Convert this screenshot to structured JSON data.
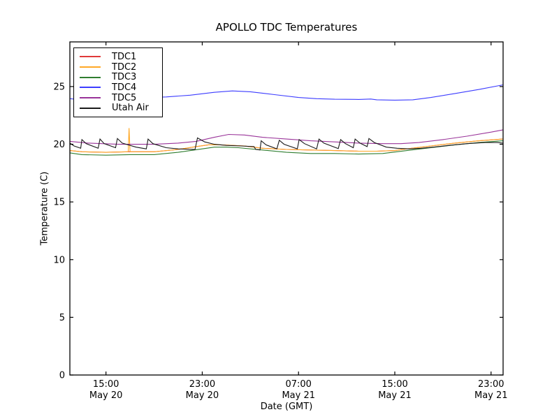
{
  "figure": {
    "background": "#ffffff"
  },
  "chart_data": {
    "type": "line",
    "title": "APOLLO TDC Temperatures",
    "xlabel": "Date (GMT)",
    "ylabel": "Temperature (C)",
    "xlim_hours": [
      0,
      36
    ],
    "ylim": [
      0,
      28.87
    ],
    "grid": false,
    "legend_position": "upper left",
    "yticks": [
      {
        "v": 0,
        "label": "0"
      },
      {
        "v": 5,
        "label": "5"
      },
      {
        "v": 10,
        "label": "10"
      },
      {
        "v": 15,
        "label": "15"
      },
      {
        "v": 20,
        "label": "20"
      },
      {
        "v": 25,
        "label": "25"
      }
    ],
    "xticks": [
      {
        "h": 3,
        "time": "15:00",
        "date": "May 20"
      },
      {
        "h": 11,
        "time": "23:00",
        "date": "May 20"
      },
      {
        "h": 19,
        "time": "07:00",
        "date": "May 21"
      },
      {
        "h": 27,
        "time": "15:00",
        "date": "May 21"
      },
      {
        "h": 35,
        "time": "23:00",
        "date": "May 21"
      }
    ],
    "series": [
      {
        "name": "TDC1",
        "color": "#e03a3a",
        "points": [
          [
            0,
            19.45
          ],
          [
            1,
            19.35
          ],
          [
            3,
            19.3
          ],
          [
            4.9,
            19.35
          ],
          [
            6,
            19.35
          ],
          [
            7,
            19.35
          ],
          [
            9,
            19.55
          ],
          [
            10.5,
            19.8
          ],
          [
            11.5,
            19.95
          ],
          [
            12.5,
            19.95
          ],
          [
            13.5,
            19.9
          ],
          [
            14.5,
            19.85
          ],
          [
            16,
            19.65
          ],
          [
            18,
            19.55
          ],
          [
            20,
            19.5
          ],
          [
            22,
            19.45
          ],
          [
            24,
            19.4
          ],
          [
            25.5,
            19.4
          ],
          [
            27,
            19.45
          ],
          [
            28,
            19.6
          ],
          [
            30,
            19.85
          ],
          [
            32,
            20.1
          ],
          [
            34,
            20.3
          ],
          [
            36,
            20.45
          ]
        ]
      },
      {
        "name": "TDC2",
        "color": "#ffa826",
        "points": [
          [
            0,
            19.45
          ],
          [
            1,
            19.35
          ],
          [
            3,
            19.3
          ],
          [
            4.85,
            19.35
          ],
          [
            4.92,
            21.4
          ],
          [
            5.0,
            19.35
          ],
          [
            6,
            19.35
          ],
          [
            7,
            19.35
          ],
          [
            9,
            19.55
          ],
          [
            10.5,
            19.8
          ],
          [
            11.5,
            19.95
          ],
          [
            12.5,
            19.95
          ],
          [
            13.5,
            19.9
          ],
          [
            14.5,
            19.85
          ],
          [
            16,
            19.65
          ],
          [
            18,
            19.55
          ],
          [
            20,
            19.5
          ],
          [
            22,
            19.45
          ],
          [
            24,
            19.4
          ],
          [
            25.5,
            19.4
          ],
          [
            27,
            19.45
          ],
          [
            28,
            19.6
          ],
          [
            30,
            19.85
          ],
          [
            32,
            20.1
          ],
          [
            34,
            20.3
          ],
          [
            36,
            20.45
          ]
        ]
      },
      {
        "name": "TDC3",
        "color": "#2f7d2f",
        "points": [
          [
            0,
            19.25
          ],
          [
            1,
            19.1
          ],
          [
            3,
            19.05
          ],
          [
            5,
            19.1
          ],
          [
            7,
            19.1
          ],
          [
            9,
            19.3
          ],
          [
            11,
            19.6
          ],
          [
            12,
            19.75
          ],
          [
            13,
            19.75
          ],
          [
            14,
            19.7
          ],
          [
            16,
            19.5
          ],
          [
            18,
            19.3
          ],
          [
            20,
            19.2
          ],
          [
            22,
            19.2
          ],
          [
            24,
            19.15
          ],
          [
            26,
            19.2
          ],
          [
            28,
            19.45
          ],
          [
            30,
            19.7
          ],
          [
            32,
            19.95
          ],
          [
            34,
            20.15
          ],
          [
            36,
            20.3
          ]
        ]
      },
      {
        "name": "TDC4",
        "color": "#3c3cff",
        "points": [
          [
            0,
            23.95
          ],
          [
            1,
            23.85
          ],
          [
            2.5,
            23.9
          ],
          [
            5,
            24.0
          ],
          [
            8,
            24.1
          ],
          [
            10,
            24.25
          ],
          [
            12,
            24.5
          ],
          [
            13.5,
            24.62
          ],
          [
            15,
            24.55
          ],
          [
            17,
            24.3
          ],
          [
            19,
            24.05
          ],
          [
            20.5,
            23.95
          ],
          [
            22,
            23.9
          ],
          [
            24,
            23.88
          ],
          [
            25,
            23.92
          ],
          [
            25.5,
            23.85
          ],
          [
            27,
            23.82
          ],
          [
            28.5,
            23.85
          ],
          [
            30,
            24.05
          ],
          [
            32,
            24.4
          ],
          [
            34,
            24.75
          ],
          [
            36,
            25.15
          ]
        ]
      },
      {
        "name": "TDC5",
        "color": "#993399",
        "points": [
          [
            0,
            20.25
          ],
          [
            1.5,
            20.1
          ],
          [
            4,
            20.0
          ],
          [
            7,
            20.0
          ],
          [
            9,
            20.1
          ],
          [
            10.5,
            20.25
          ],
          [
            12,
            20.6
          ],
          [
            13.2,
            20.85
          ],
          [
            14.5,
            20.8
          ],
          [
            16,
            20.6
          ],
          [
            18,
            20.45
          ],
          [
            20,
            20.3
          ],
          [
            22,
            20.2
          ],
          [
            24,
            20.1
          ],
          [
            26,
            20.05
          ],
          [
            27.5,
            20.05
          ],
          [
            29,
            20.15
          ],
          [
            31,
            20.4
          ],
          [
            33,
            20.7
          ],
          [
            35,
            21.05
          ],
          [
            36,
            21.25
          ]
        ]
      },
      {
        "name": "Utah Air",
        "color": "#1a1a1a",
        "points": [
          [
            0,
            20.1
          ],
          [
            0.35,
            19.85
          ],
          [
            0.9,
            19.65
          ],
          [
            1.0,
            20.4
          ],
          [
            1.35,
            20.05
          ],
          [
            2.35,
            19.65
          ],
          [
            2.5,
            20.45
          ],
          [
            2.85,
            20.05
          ],
          [
            3.8,
            19.7
          ],
          [
            3.95,
            20.5
          ],
          [
            4.35,
            20.1
          ],
          [
            5.5,
            19.75
          ],
          [
            6.35,
            19.6
          ],
          [
            6.5,
            20.45
          ],
          [
            6.9,
            20.05
          ],
          [
            8.0,
            19.7
          ],
          [
            9.0,
            19.6
          ],
          [
            10.4,
            19.55
          ],
          [
            10.6,
            20.55
          ],
          [
            11.2,
            20.2
          ],
          [
            12.0,
            20.0
          ],
          [
            13.0,
            19.9
          ],
          [
            14.2,
            19.85
          ],
          [
            15.3,
            19.8
          ],
          [
            15.45,
            19.55
          ],
          [
            15.8,
            19.5
          ],
          [
            15.9,
            20.3
          ],
          [
            16.3,
            19.95
          ],
          [
            17.2,
            19.6
          ],
          [
            17.4,
            20.35
          ],
          [
            17.8,
            20.0
          ],
          [
            18.9,
            19.6
          ],
          [
            19.05,
            20.4
          ],
          [
            19.5,
            20.05
          ],
          [
            20.5,
            19.6
          ],
          [
            20.7,
            20.45
          ],
          [
            21.1,
            20.1
          ],
          [
            22.3,
            19.62
          ],
          [
            22.5,
            20.4
          ],
          [
            22.9,
            20.05
          ],
          [
            23.55,
            19.7
          ],
          [
            23.7,
            20.45
          ],
          [
            24.1,
            20.1
          ],
          [
            24.7,
            19.8
          ],
          [
            24.85,
            20.5
          ],
          [
            25.3,
            20.15
          ],
          [
            26.3,
            19.75
          ],
          [
            27.2,
            19.65
          ],
          [
            28.2,
            19.6
          ],
          [
            29.2,
            19.65
          ],
          [
            30.2,
            19.75
          ],
          [
            31.5,
            19.9
          ],
          [
            33,
            20.05
          ],
          [
            34.5,
            20.15
          ],
          [
            35.5,
            20.15
          ],
          [
            36,
            20.1
          ]
        ]
      }
    ]
  }
}
